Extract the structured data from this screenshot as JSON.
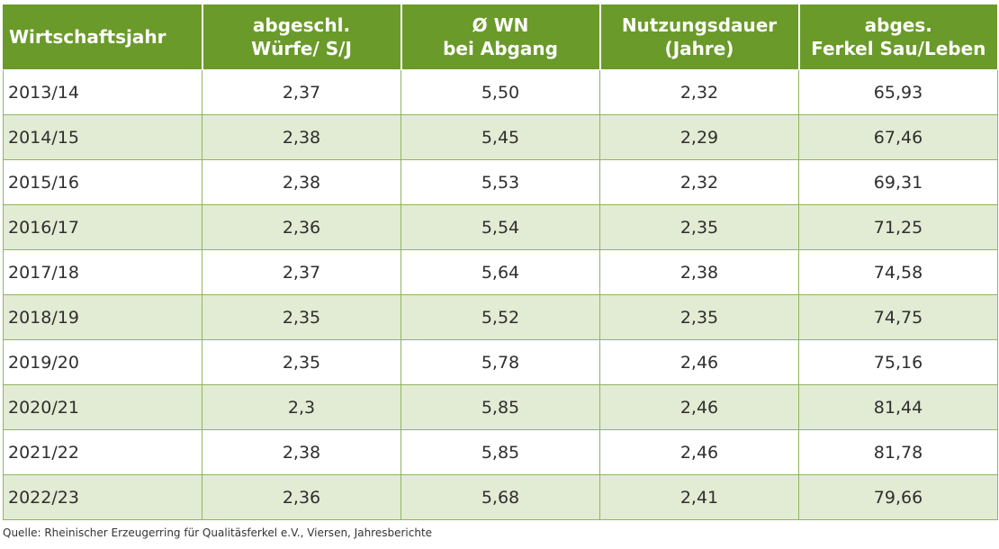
{
  "chart_data": {
    "type": "table",
    "columns": [
      [
        "Wirtschaftsjahr"
      ],
      [
        "abgeschl.",
        "Würfe/ S/J"
      ],
      [
        "Ø WN",
        "bei Abgang"
      ],
      [
        "Nutzungsdauer",
        "(Jahre)"
      ],
      [
        "abges.",
        "Ferkel Sau/Leben"
      ]
    ],
    "rows": [
      [
        "2013/14",
        "2,37",
        "5,50",
        "2,32",
        "65,93"
      ],
      [
        "2014/15",
        "2,38",
        "5,45",
        "2,29",
        "67,46"
      ],
      [
        "2015/16",
        "2,38",
        "5,53",
        "2,32",
        "69,31"
      ],
      [
        "2016/17",
        "2,36",
        "5,54",
        "2,35",
        "71,25"
      ],
      [
        "2017/18",
        "2,37",
        "5,64",
        "2,38",
        "74,58"
      ],
      [
        "2018/19",
        "2,35",
        "5,52",
        "2,35",
        "74,75"
      ],
      [
        "2019/20",
        "2,35",
        "5,78",
        "2,46",
        "75,16"
      ],
      [
        "2020/21",
        "2,3",
        "5,85",
        "2,46",
        "81,44"
      ],
      [
        "2021/22",
        "2,38",
        "5,85",
        "2,46",
        "81,78"
      ],
      [
        "2022/23",
        "2,36",
        "5,68",
        "2,41",
        "79,66"
      ]
    ],
    "source": "Quelle: Rheinischer Erzeugerring für Qualitäsferkel e.V., Viersen, Jahresberichte",
    "colors": {
      "header_bg": "#6a9a2a",
      "header_text": "#ffffff",
      "row_even_bg": "#e2ebd3",
      "row_odd_bg": "#ffffff",
      "border": "#8fb560"
    }
  }
}
